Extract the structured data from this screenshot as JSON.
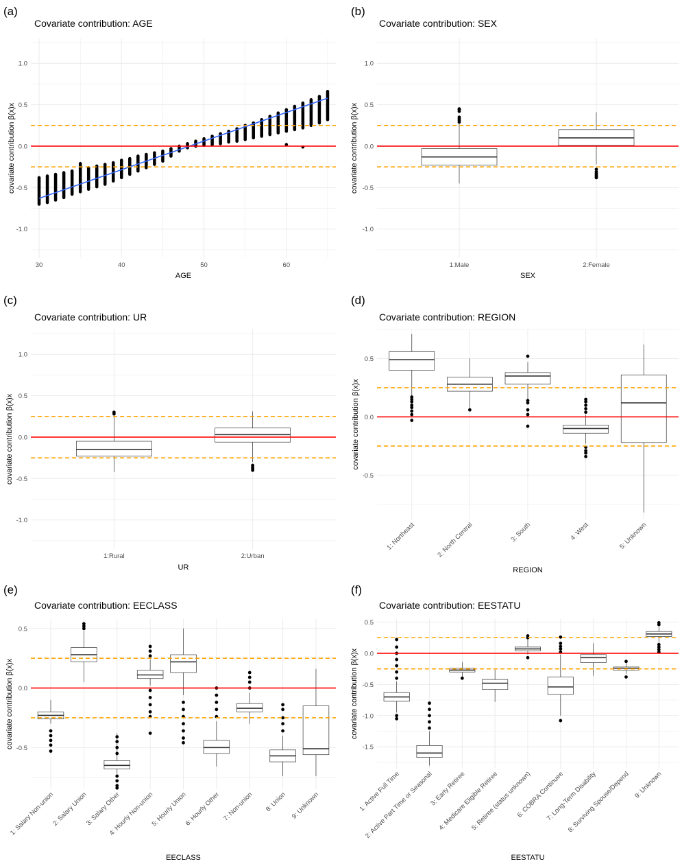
{
  "colors": {
    "grid": "#ebebeb",
    "zero_line": "#ff0000",
    "threshold_line": "#ffa500",
    "box_stroke": "#333333",
    "point": "#000000",
    "fit_line": "#3366ff"
  },
  "panels": [
    {
      "letter": "(a)",
      "chart_data": {
        "type": "scatter",
        "title": "Covariate contribution: AGE",
        "xlabel": "AGE",
        "ylabel": "covariate contribution β(x)x",
        "xlim": [
          29,
          66
        ],
        "ylim": [
          -1.35,
          1.3
        ],
        "xticks": [
          30,
          40,
          50,
          60
        ],
        "yticks": [
          -1.0,
          -0.5,
          0.0,
          0.5,
          1.0
        ],
        "ytick_labels": [
          "-1.0",
          "-0.5",
          "0.0",
          "0.5",
          "1.0"
        ],
        "reference_lines": {
          "zero": 0,
          "thresholds": [
            -0.25,
            0.25
          ]
        },
        "columns": [
          {
            "x": 30,
            "min": -0.7,
            "max": -0.38
          },
          {
            "x": 31,
            "min": -0.68,
            "max": -0.36
          },
          {
            "x": 32,
            "min": -0.65,
            "max": -0.34
          },
          {
            "x": 33,
            "min": -0.62,
            "max": -0.32
          },
          {
            "x": 34,
            "min": -0.58,
            "max": -0.3
          },
          {
            "x": 35,
            "min": -0.55,
            "max": -0.21
          },
          {
            "x": 36,
            "min": -0.52,
            "max": -0.26
          },
          {
            "x": 37,
            "min": -0.49,
            "max": -0.24
          },
          {
            "x": 38,
            "min": -0.46,
            "max": -0.22
          },
          {
            "x": 39,
            "min": -0.42,
            "max": -0.2
          },
          {
            "x": 40,
            "min": -0.38,
            "max": -0.17
          },
          {
            "x": 41,
            "min": -0.34,
            "max": -0.15
          },
          {
            "x": 42,
            "min": -0.3,
            "max": -0.12
          },
          {
            "x": 43,
            "min": -0.26,
            "max": -0.1
          },
          {
            "x": 44,
            "min": -0.22,
            "max": -0.08
          },
          {
            "x": 45,
            "min": -0.18,
            "max": -0.06
          },
          {
            "x": 46,
            "min": -0.12,
            "max": -0.03
          },
          {
            "x": 47,
            "min": -0.06,
            "max": 0.0
          },
          {
            "x": 48,
            "min": -0.02,
            "max": 0.03
          },
          {
            "x": 49,
            "min": 0.0,
            "max": 0.06
          },
          {
            "x": 50,
            "min": 0.01,
            "max": 0.09
          },
          {
            "x": 51,
            "min": 0.02,
            "max": 0.12
          },
          {
            "x": 52,
            "min": 0.03,
            "max": 0.15
          },
          {
            "x": 53,
            "min": 0.05,
            "max": 0.18
          },
          {
            "x": 54,
            "min": 0.06,
            "max": 0.21
          },
          {
            "x": 55,
            "min": 0.08,
            "max": 0.25
          },
          {
            "x": 56,
            "min": 0.1,
            "max": 0.28
          },
          {
            "x": 57,
            "min": 0.12,
            "max": 0.32
          },
          {
            "x": 58,
            "min": 0.14,
            "max": 0.36
          },
          {
            "x": 59,
            "min": 0.16,
            "max": 0.4
          },
          {
            "x": 60,
            "min": 0.18,
            "max": 0.44
          },
          {
            "x": 61,
            "min": 0.2,
            "max": 0.48
          },
          {
            "x": 62,
            "min": 0.22,
            "max": 0.52
          },
          {
            "x": 63,
            "min": 0.25,
            "max": 0.56
          },
          {
            "x": 64,
            "min": 0.28,
            "max": 0.6
          },
          {
            "x": 65,
            "min": 0.32,
            "max": 0.66
          }
        ],
        "extra_points": [
          {
            "x": 62,
            "y": -0.01
          },
          {
            "x": 60,
            "y": 0.02
          }
        ],
        "fit_line": {
          "x": [
            30,
            65
          ],
          "y": [
            -0.63,
            0.58
          ]
        }
      }
    },
    {
      "letter": "(b)",
      "chart_data": {
        "type": "box",
        "title": "Covariate contribution: SEX",
        "xlabel": "SEX",
        "ylabel": "covariate contribution β(x)x",
        "ylim": [
          -1.35,
          1.3
        ],
        "yticks": [
          -1.0,
          -0.5,
          0.0,
          0.5,
          1.0
        ],
        "ytick_labels": [
          "-1.0",
          "-0.5",
          "0.0",
          "0.5",
          "1.0"
        ],
        "tick_rotate": false,
        "reference_lines": {
          "zero": 0,
          "thresholds": [
            -0.25,
            0.25
          ]
        },
        "categories": [
          "1:Male",
          "2:Female"
        ],
        "boxes": [
          {
            "low": -0.45,
            "q1": -0.23,
            "median": -0.13,
            "q3": -0.03,
            "high": 0.27,
            "outliers": [
              0.29,
              0.31,
              0.33,
              0.35,
              0.42,
              0.44,
              0.45
            ]
          },
          {
            "low": -0.22,
            "q1": 0.01,
            "median": 0.1,
            "q3": 0.2,
            "high": 0.41,
            "outliers": [
              -0.28,
              -0.31,
              -0.33,
              -0.35,
              -0.37,
              -0.38
            ]
          }
        ]
      }
    },
    {
      "letter": "(c)",
      "chart_data": {
        "type": "box",
        "title": "Covariate contribution: UR",
        "xlabel": "UR",
        "ylabel": "covariate contribution β(x)x",
        "ylim": [
          -1.35,
          1.3
        ],
        "yticks": [
          -1.0,
          -0.5,
          0.0,
          0.5,
          1.0
        ],
        "ytick_labels": [
          "-1.0",
          "-0.5",
          "0.0",
          "0.5",
          "1.0"
        ],
        "tick_rotate": false,
        "reference_lines": {
          "zero": 0,
          "thresholds": [
            -0.25,
            0.25
          ]
        },
        "categories": [
          "1:Rural",
          "2:Urban"
        ],
        "boxes": [
          {
            "low": -0.42,
            "q1": -0.23,
            "median": -0.15,
            "q3": -0.05,
            "high": 0.27,
            "outliers": [
              0.28,
              0.3
            ]
          },
          {
            "low": -0.3,
            "q1": -0.06,
            "median": 0.03,
            "q3": 0.11,
            "high": 0.31,
            "outliers": [
              -0.34,
              -0.36,
              -0.38,
              -0.4
            ]
          }
        ]
      }
    },
    {
      "letter": "(d)",
      "chart_data": {
        "type": "box",
        "title": "Covariate contribution: REGION",
        "xlabel": "REGION",
        "ylabel": "covariate contribution β(x)x",
        "ylim": [
          -0.88,
          0.75
        ],
        "yticks": [
          -0.5,
          0.0,
          0.5
        ],
        "ytick_labels": [
          "-0.5",
          "0.0",
          "0.5"
        ],
        "tick_rotate": true,
        "reference_lines": {
          "zero": 0,
          "thresholds": [
            -0.25,
            0.25
          ]
        },
        "categories": [
          "1: Northeast",
          "2: North Central",
          "3: South",
          "4: West",
          "5: Unknown"
        ],
        "boxes": [
          {
            "low": 0.18,
            "q1": 0.4,
            "median": 0.49,
            "q3": 0.56,
            "high": 0.71,
            "outliers": [
              -0.03,
              0.02,
              0.05,
              0.08,
              0.1,
              0.13,
              0.15,
              0.17
            ]
          },
          {
            "low": 0.06,
            "q1": 0.22,
            "median": 0.28,
            "q3": 0.34,
            "high": 0.5,
            "outliers": [
              0.06
            ]
          },
          {
            "low": 0.15,
            "q1": 0.28,
            "median": 0.35,
            "q3": 0.38,
            "high": 0.47,
            "outliers": [
              -0.08,
              0.02,
              0.06,
              0.12,
              0.14,
              0.52
            ]
          },
          {
            "low": -0.23,
            "q1": -0.14,
            "median": -0.1,
            "q3": -0.07,
            "high": 0.02,
            "outliers": [
              0.04,
              0.07,
              0.1,
              0.13,
              0.15,
              -0.26,
              -0.29,
              -0.31,
              -0.34
            ]
          },
          {
            "low": -0.82,
            "q1": -0.22,
            "median": 0.12,
            "q3": 0.36,
            "high": 0.62,
            "outliers": []
          }
        ]
      }
    },
    {
      "letter": "(e)",
      "chart_data": {
        "type": "box",
        "title": "Covariate contribution: EECLASS",
        "xlabel": "EECLASS",
        "ylabel": "covariate contribution β(x)x",
        "ylim": [
          -0.85,
          0.58
        ],
        "yticks": [
          -0.5,
          0.0,
          0.5
        ],
        "ytick_labels": [
          "-0.5",
          "0.0",
          "0.5"
        ],
        "tick_rotate": true,
        "reference_lines": {
          "zero": 0,
          "thresholds": [
            -0.25,
            0.25
          ]
        },
        "categories": [
          "1: Salary Non-union",
          "2: Salary Union",
          "3: Salary Other",
          "4: Hourly Non-union",
          "5: Hourly Union",
          "6: Hourly Other",
          "7: Non-union",
          "8: Union",
          "9: Unknown"
        ],
        "boxes": [
          {
            "low": -0.3,
            "q1": -0.26,
            "median": -0.23,
            "q3": -0.2,
            "high": -0.1,
            "outliers": [
              -0.36,
              -0.4,
              -0.44,
              -0.48,
              -0.53
            ]
          },
          {
            "low": 0.05,
            "q1": 0.22,
            "median": 0.28,
            "q3": 0.34,
            "high": 0.48,
            "outliers": [
              0.5,
              0.52,
              0.54
            ]
          },
          {
            "low": -0.72,
            "q1": -0.68,
            "median": -0.65,
            "q3": -0.61,
            "high": -0.38,
            "outliers": [
              -0.41,
              -0.45,
              -0.5,
              -0.55,
              -0.74,
              -0.78,
              -0.82,
              -0.84
            ]
          },
          {
            "low": 0.02,
            "q1": 0.08,
            "median": 0.11,
            "q3": 0.15,
            "high": 0.24,
            "outliers": [
              0.27,
              0.31,
              0.35,
              -0.02,
              -0.08,
              -0.14,
              -0.2,
              -0.24,
              -0.38
            ]
          },
          {
            "low": -0.06,
            "q1": 0.13,
            "median": 0.22,
            "q3": 0.28,
            "high": 0.5,
            "outliers": [
              -0.12,
              -0.18,
              -0.24,
              -0.3,
              -0.36,
              -0.42,
              -0.46
            ]
          },
          {
            "low": -0.66,
            "q1": -0.55,
            "median": -0.5,
            "q3": -0.44,
            "high": -0.28,
            "outliers": [
              -0.24,
              -0.18,
              -0.12,
              -0.06,
              0.0
            ]
          },
          {
            "low": -0.3,
            "q1": -0.2,
            "median": -0.17,
            "q3": -0.13,
            "high": -0.04,
            "outliers": [
              0.0,
              0.05,
              0.09,
              0.13
            ]
          },
          {
            "low": -0.74,
            "q1": -0.62,
            "median": -0.57,
            "q3": -0.52,
            "high": -0.4,
            "outliers": [
              -0.36,
              -0.3,
              -0.25,
              -0.18,
              -0.14
            ]
          },
          {
            "low": -0.74,
            "q1": -0.56,
            "median": -0.51,
            "q3": -0.15,
            "high": 0.16,
            "outliers": []
          }
        ]
      }
    },
    {
      "letter": "(f)",
      "chart_data": {
        "type": "box",
        "title": "Covariate contribution: EESTATU",
        "xlabel": "EESTATU",
        "ylabel": "covariate contribution β(x)x",
        "ylim": [
          -1.85,
          0.55
        ],
        "yticks": [
          -1.5,
          -1.0,
          -0.5,
          0.0,
          0.5
        ],
        "ytick_labels": [
          "-1.5",
          "-1.0",
          "-0.5",
          "0.0",
          "0.5"
        ],
        "tick_rotate": true,
        "reference_lines": {
          "zero": 0,
          "thresholds": [
            -0.25,
            0.25
          ]
        },
        "categories": [
          "1: Active Full Time",
          "2: Active Part Time or Seasonal",
          "3: Early Retiree",
          "4: Medicare Eligible Retiree",
          "5: Retiree (status unknown)",
          "6: COBRA Continuee",
          "7: Long-Term Disability",
          "8: Surviving Spouse/Depend",
          "9: Unknown"
        ],
        "boxes": [
          {
            "low": -0.95,
            "q1": -0.77,
            "median": -0.7,
            "q3": -0.63,
            "high": -0.45,
            "outliers": [
              -0.4,
              -0.3,
              -0.2,
              -0.1,
              0.0,
              0.1,
              0.22,
              -1.0,
              -1.05
            ]
          },
          {
            "low": -1.8,
            "q1": -1.67,
            "median": -1.6,
            "q3": -1.48,
            "high": -1.25,
            "outliers": [
              -1.2,
              -1.1,
              -1.0,
              -0.9,
              -0.8
            ]
          },
          {
            "low": -0.38,
            "q1": -0.3,
            "median": -0.27,
            "q3": -0.24,
            "high": -0.14,
            "outliers": [
              -0.4
            ]
          },
          {
            "low": -0.78,
            "q1": -0.58,
            "median": -0.48,
            "q3": -0.42,
            "high": -0.26,
            "outliers": []
          },
          {
            "low": -0.02,
            "q1": 0.04,
            "median": 0.07,
            "q3": 0.1,
            "high": 0.22,
            "outliers": [
              0.25,
              0.28,
              -0.07
            ]
          },
          {
            "low": -1.0,
            "q1": -0.66,
            "median": -0.54,
            "q3": -0.38,
            "high": -0.02,
            "outliers": [
              0.02,
              0.07,
              0.11,
              0.16,
              0.26,
              -1.08
            ]
          },
          {
            "low": -0.36,
            "q1": -0.15,
            "median": -0.07,
            "q3": -0.02,
            "high": 0.16,
            "outliers": []
          },
          {
            "low": -0.33,
            "q1": -0.27,
            "median": -0.24,
            "q3": -0.22,
            "high": -0.15,
            "outliers": [
              -0.13,
              -0.38
            ]
          },
          {
            "low": 0.17,
            "q1": 0.27,
            "median": 0.31,
            "q3": 0.35,
            "high": 0.42,
            "outliers": [
              0.02,
              0.06,
              0.1,
              0.14,
              0.46,
              0.49
            ]
          }
        ]
      }
    }
  ]
}
